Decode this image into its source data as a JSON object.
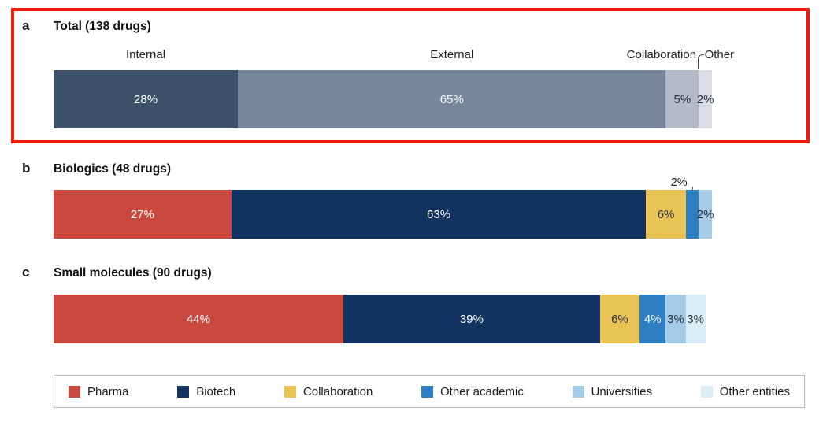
{
  "figure": {
    "highlight_color": "#ee1a0d",
    "background": "#ffffff"
  },
  "chart_data": [
    {
      "type": "bar",
      "panel": "a",
      "title": "Total (138 drugs)",
      "orientation": "horizontal-stacked",
      "unit": "%",
      "xlim": [
        0,
        100
      ],
      "highlighted": true,
      "segments": [
        {
          "label": "Internal",
          "value": 28,
          "color": "#3d5268",
          "text_color": "#ffffff"
        },
        {
          "label": "External",
          "value": 65,
          "color": "#79879c",
          "text_color": "#ffffff"
        },
        {
          "label": "Collaboration",
          "value": 5,
          "color": "#b4bac8",
          "text_color": "#26303c"
        },
        {
          "label": "Other",
          "value": 2,
          "color": "#dadde6",
          "text_color": "#26303c"
        }
      ]
    },
    {
      "type": "bar",
      "panel": "b",
      "title": "Biologics (48 drugs)",
      "orientation": "horizontal-stacked",
      "unit": "%",
      "xlim": [
        0,
        100
      ],
      "highlighted": false,
      "segments": [
        {
          "label": "Pharma",
          "value": 27,
          "color": "#c9493f",
          "text_color": "#ffffff"
        },
        {
          "label": "Biotech",
          "value": 63,
          "color": "#123261",
          "text_color": "#ffffff"
        },
        {
          "label": "Collaboration",
          "value": 6,
          "color": "#e9c356",
          "text_color": "#26303c"
        },
        {
          "label": "Other academic",
          "value": 2,
          "color": "#2e7fc2",
          "text_color": "#26303c",
          "label_position": "above"
        },
        {
          "label": "Universities",
          "value": 2,
          "color": "#a6cbe7",
          "text_color": "#26303c"
        }
      ]
    },
    {
      "type": "bar",
      "panel": "c",
      "title": "Small molecules (90 drugs)",
      "orientation": "horizontal-stacked",
      "unit": "%",
      "xlim": [
        0,
        100
      ],
      "highlighted": false,
      "segments": [
        {
          "label": "Pharma",
          "value": 44,
          "color": "#c9493f",
          "text_color": "#ffffff"
        },
        {
          "label": "Biotech",
          "value": 39,
          "color": "#123261",
          "text_color": "#ffffff"
        },
        {
          "label": "Collaboration",
          "value": 6,
          "color": "#e9c356",
          "text_color": "#26303c"
        },
        {
          "label": "Other academic",
          "value": 4,
          "color": "#2e7fc2",
          "text_color": "#ffffff"
        },
        {
          "label": "Universities",
          "value": 3,
          "color": "#a6cbe7",
          "text_color": "#26303c"
        },
        {
          "label": "Other entities",
          "value": 3,
          "color": "#d9eef6",
          "text_color": "#26303c"
        }
      ]
    }
  ],
  "legend": {
    "items": [
      {
        "label": "Pharma",
        "color": "#c9493f"
      },
      {
        "label": "Biotech",
        "color": "#123261"
      },
      {
        "label": "Collaboration",
        "color": "#e9c356"
      },
      {
        "label": "Other academic",
        "color": "#2e7fc2"
      },
      {
        "label": "Universities",
        "color": "#a6cbe7"
      },
      {
        "label": "Other entities",
        "color": "#d9eef6"
      }
    ]
  }
}
